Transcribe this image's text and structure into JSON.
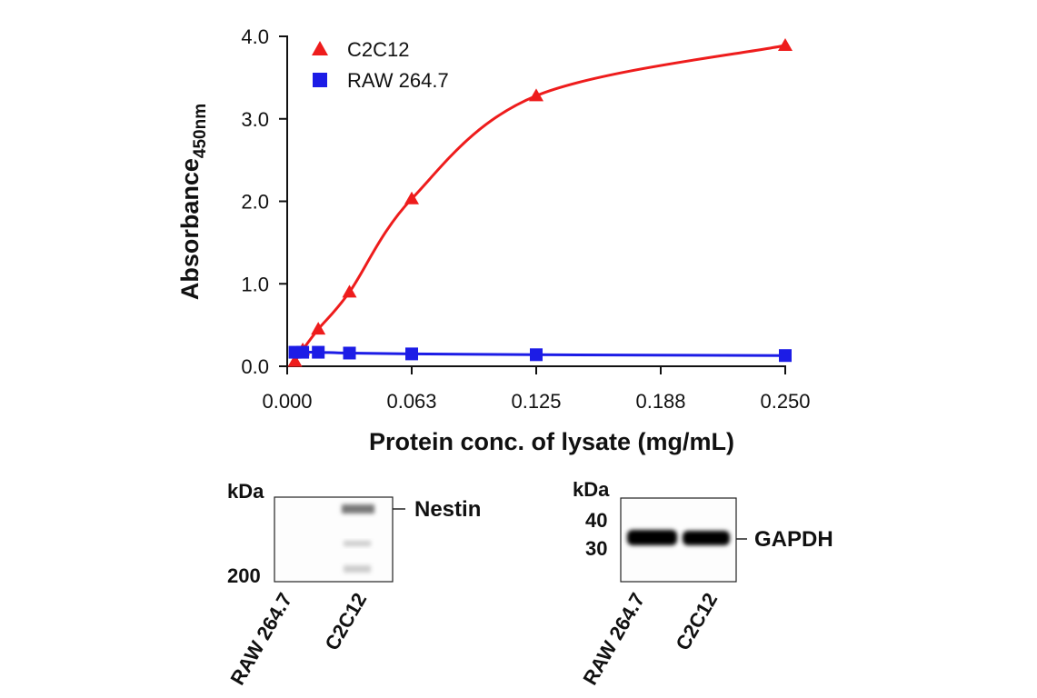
{
  "chart_data": {
    "type": "scatter",
    "xlabel": "Protein conc. of lysate (mg/mL)",
    "ylabel": "Absorbance",
    "ylabel_subscript": "450nm",
    "xlim": [
      0,
      0.25
    ],
    "ylim": [
      0,
      4
    ],
    "xticks": [
      {
        "value": 0,
        "label": "0.000"
      },
      {
        "value": 0.0625,
        "label": "0.063"
      },
      {
        "value": 0.125,
        "label": "0.125"
      },
      {
        "value": 0.1875,
        "label": "0.188"
      },
      {
        "value": 0.25,
        "label": "0.250"
      }
    ],
    "yticks": [
      {
        "value": 0,
        "label": "0.0"
      },
      {
        "value": 1,
        "label": "1.0"
      },
      {
        "value": 2,
        "label": "2.0"
      },
      {
        "value": 3,
        "label": "3.0"
      },
      {
        "value": 4,
        "label": "4.0"
      }
    ],
    "legend": "upper left",
    "x": [
      0.0039,
      0.0078,
      0.0156,
      0.03125,
      0.0625,
      0.125,
      0.25
    ],
    "series": [
      {
        "name": "C2C12",
        "color": "#ee1c1c",
        "marker": "triangle",
        "values": [
          0.06,
          0.2,
          0.45,
          0.9,
          2.03,
          3.28,
          3.89
        ]
      },
      {
        "name": "RAW 264.7",
        "color": "#1c1ce6",
        "marker": "square",
        "values": [
          0.17,
          0.17,
          0.17,
          0.16,
          0.15,
          0.14,
          0.13
        ]
      }
    ]
  },
  "blots": [
    {
      "unit": "kDa",
      "markers": [
        "200"
      ],
      "band": "Nestin",
      "lanes": [
        "RAW 264.7",
        "C2C12"
      ]
    },
    {
      "unit": "kDa",
      "markers": [
        "40",
        "30"
      ],
      "band": "GAPDH",
      "lanes": [
        "RAW 264.7",
        "C2C12"
      ]
    }
  ]
}
